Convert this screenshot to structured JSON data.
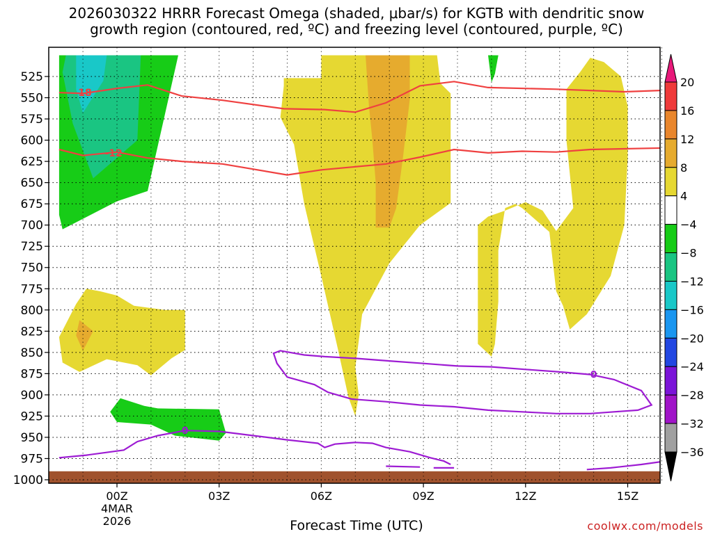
{
  "chart_data": {
    "type": "contour",
    "title_line1": "2026030322 HRRR Forecast Omega (shaded, μbar/s) for KGTB with dendritic snow",
    "title_line2": "growth region (contoured, red, ºC) and freezing level (contoured, purple, ºC)",
    "xlabel": "Forecast Time (UTC)",
    "xlim": [
      -1.7,
      16.3
    ],
    "ylim": [
      1000,
      500
    ],
    "x_ticks": [
      {
        "hours": 0,
        "label": "00Z",
        "sub1": "4MAR",
        "sub2": "2026"
      },
      {
        "hours": 3,
        "label": "03Z"
      },
      {
        "hours": 6,
        "label": "06Z"
      },
      {
        "hours": 9,
        "label": "09Z"
      },
      {
        "hours": 12,
        "label": "12Z"
      },
      {
        "hours": 15,
        "label": "15Z"
      }
    ],
    "y_ticks": [
      525,
      550,
      575,
      600,
      625,
      650,
      675,
      700,
      725,
      750,
      775,
      800,
      825,
      850,
      875,
      900,
      925,
      950,
      975,
      1000
    ],
    "colorbar": {
      "levels": [
        {
          "label": "20",
          "color": "#e8197a"
        },
        {
          "label": "16",
          "color": "#ef3a3a"
        },
        {
          "label": "12",
          "color": "#e9862c"
        },
        {
          "label": "8",
          "color": "#e6ab2e"
        },
        {
          "label": "4",
          "color": "#e6d832"
        },
        {
          "label": "−4",
          "color": "#ffffff"
        },
        {
          "label": "−8",
          "color": "#17cc17"
        },
        {
          "label": "−12",
          "color": "#1ac582"
        },
        {
          "label": "−16",
          "color": "#19c8c8"
        },
        {
          "label": "−20",
          "color": "#1a96f0"
        },
        {
          "label": "−24",
          "color": "#2247e2"
        },
        {
          "label": "−28",
          "color": "#7b14d8"
        },
        {
          "label": "−32",
          "color": "#a014c8"
        },
        {
          "label": "−36",
          "color": "#a0a0a0"
        }
      ]
    },
    "contours": {
      "dgz_upper": {
        "label": "-18",
        "color": "#ef4040",
        "points": [
          [
            -1.7,
            544
          ],
          [
            -1.0,
            545
          ],
          [
            0,
            539
          ],
          [
            0.9,
            535
          ],
          [
            1.9,
            548
          ],
          [
            3.1,
            553
          ],
          [
            4.9,
            563
          ],
          [
            6.1,
            564
          ],
          [
            7.0,
            567
          ],
          [
            7.9,
            556
          ],
          [
            8.9,
            536
          ],
          [
            9.9,
            531
          ],
          [
            10.9,
            538
          ],
          [
            12.9,
            540
          ],
          [
            14.9,
            543
          ],
          [
            16.3,
            541
          ]
        ]
      },
      "dgz_lower": {
        "label": "-12",
        "color": "#ef4040",
        "points": [
          [
            -1.7,
            611
          ],
          [
            -1.0,
            618
          ],
          [
            0,
            614
          ],
          [
            0.9,
            621
          ],
          [
            1.9,
            625
          ],
          [
            3.1,
            628
          ],
          [
            5.0,
            641
          ],
          [
            6.0,
            635
          ],
          [
            7.9,
            628
          ],
          [
            8.9,
            620
          ],
          [
            9.9,
            611
          ],
          [
            10.9,
            615
          ],
          [
            11.9,
            613
          ],
          [
            12.9,
            614
          ],
          [
            13.9,
            611
          ],
          [
            16.3,
            609
          ]
        ]
      },
      "freezing_level": {
        "label": "0",
        "color": "#9d1bd3",
        "labels_at": [
          [
            2.0,
            942
          ],
          [
            14.0,
            876
          ]
        ],
        "lines": [
          [
            [
              -1.7,
              974
            ],
            [
              -0.9,
              971
            ],
            [
              0.2,
              965
            ],
            [
              0.6,
              955
            ],
            [
              1.2,
              948
            ],
            [
              2.0,
              942
            ],
            [
              3.0,
              943
            ],
            [
              4.0,
              948
            ],
            [
              5.0,
              953
            ],
            [
              5.9,
              957
            ],
            [
              6.1,
              962
            ],
            [
              6.4,
              958
            ],
            [
              7.0,
              956
            ],
            [
              7.5,
              957
            ],
            [
              7.9,
              962
            ],
            [
              8.6,
              967
            ],
            [
              9.2,
              974
            ],
            [
              9.6,
              978
            ],
            [
              9.8,
              982
            ]
          ],
          [
            [
              7.9,
              984
            ],
            [
              8.9,
              985
            ]
          ],
          [
            [
              9.3,
              986
            ],
            [
              9.9,
              986
            ]
          ],
          [
            [
              13.8,
              988
            ],
            [
              14.5,
              986
            ],
            [
              15.4,
              982
            ],
            [
              16.3,
              977
            ]
          ]
        ],
        "loops": [
          [
            [
              4.8,
              848
            ],
            [
              5.5,
              853
            ],
            [
              6.1,
              855
            ],
            [
              7.0,
              857
            ],
            [
              8.0,
              860
            ],
            [
              9.0,
              863
            ],
            [
              10.0,
              866
            ],
            [
              11.0,
              867
            ],
            [
              12.0,
              870
            ],
            [
              13.0,
              873
            ],
            [
              13.9,
              876
            ],
            [
              14.6,
              882
            ],
            [
              15.4,
              895
            ],
            [
              15.7,
              912
            ],
            [
              15.3,
              918
            ],
            [
              14.6,
              920
            ],
            [
              13.9,
              922
            ],
            [
              12.9,
              922
            ],
            [
              11.9,
              920
            ],
            [
              10.9,
              918
            ],
            [
              9.9,
              914
            ],
            [
              8.9,
              912
            ],
            [
              7.9,
              908
            ],
            [
              6.9,
              905
            ],
            [
              6.2,
              897
            ],
            [
              5.8,
              888
            ],
            [
              5.0,
              879
            ],
            [
              4.7,
              863
            ],
            [
              4.6,
              851
            ]
          ]
        ]
      }
    },
    "surface_band": {
      "color": "#a0522d",
      "pressure_top": 990,
      "pressure_bottom": 1000
    },
    "regions": [
      {
        "color": "#17cc17",
        "points": [
          [
            -1.7,
            500
          ],
          [
            1.8,
            500
          ],
          [
            0.9,
            660
          ],
          [
            0,
            672
          ],
          [
            -1.6,
            705
          ],
          [
            -1.7,
            688
          ]
        ]
      },
      {
        "color": "#1ac582",
        "points": [
          [
            -1.5,
            500
          ],
          [
            0.7,
            500
          ],
          [
            0.6,
            600
          ],
          [
            -0.7,
            645
          ],
          [
            -1.3,
            580
          ],
          [
            -1.6,
            520
          ]
        ]
      },
      {
        "color": "#19c8c8",
        "points": [
          [
            -1.2,
            500
          ],
          [
            -0.3,
            500
          ],
          [
            -0.4,
            530
          ],
          [
            -1.0,
            568
          ],
          [
            -1.2,
            540
          ]
        ]
      },
      {
        "color": "#17cc17",
        "points": [
          [
            10.9,
            500
          ],
          [
            11.2,
            500
          ],
          [
            11.1,
            522
          ],
          [
            11.0,
            532
          ]
        ]
      },
      {
        "color": "#17cc17",
        "points": [
          [
            -0.2,
            920
          ],
          [
            0.1,
            904
          ],
          [
            0.8,
            913
          ],
          [
            1.2,
            916
          ],
          [
            3.0,
            917
          ],
          [
            3.2,
            945
          ],
          [
            3.0,
            954
          ],
          [
            1.7,
            948
          ],
          [
            1.0,
            935
          ],
          [
            0,
            932
          ]
        ]
      },
      {
        "color": "#e6d832",
        "points": [
          [
            6.0,
            500
          ],
          [
            7.4,
            500
          ],
          [
            9.4,
            500
          ],
          [
            9.5,
            533
          ],
          [
            9.8,
            545
          ],
          [
            9.8,
            674
          ],
          [
            8.9,
            700
          ],
          [
            8.0,
            745
          ],
          [
            7.2,
            805
          ],
          [
            7.0,
            868
          ],
          [
            7.1,
            900
          ],
          [
            7.0,
            925
          ],
          [
            6.8,
            903
          ],
          [
            6.5,
            848
          ],
          [
            6.0,
            760
          ],
          [
            5.5,
            675
          ],
          [
            5.2,
            605
          ],
          [
            4.8,
            573
          ],
          [
            4.9,
            536
          ],
          [
            4.9,
            527
          ],
          [
            6.0,
            527
          ]
        ]
      },
      {
        "color": "#e6ab2e",
        "points": [
          [
            7.3,
            500
          ],
          [
            8.6,
            500
          ],
          [
            8.6,
            552
          ],
          [
            8.4,
            620
          ],
          [
            8.2,
            680
          ],
          [
            8.0,
            703
          ],
          [
            7.6,
            703
          ],
          [
            7.6,
            650
          ],
          [
            7.5,
            600
          ],
          [
            7.4,
            560
          ]
        ]
      },
      {
        "color": "#e6d832",
        "points": [
          [
            13.4,
            680
          ],
          [
            13.2,
            600
          ],
          [
            13.2,
            540
          ],
          [
            13.6,
            520
          ],
          [
            13.9,
            503
          ],
          [
            14.3,
            508
          ],
          [
            14.8,
            525
          ],
          [
            15.0,
            560
          ],
          [
            15.0,
            620
          ],
          [
            14.9,
            700
          ],
          [
            14.5,
            760
          ],
          [
            13.8,
            805
          ],
          [
            13.3,
            823
          ],
          [
            13.1,
            795
          ],
          [
            12.9,
            778
          ],
          [
            12.7,
            708
          ],
          [
            11.9,
            680
          ],
          [
            11.7,
            675
          ],
          [
            11.4,
            680
          ],
          [
            11.2,
            730
          ],
          [
            11.2,
            790
          ],
          [
            11.1,
            840
          ],
          [
            11.0,
            855
          ],
          [
            10.6,
            840
          ],
          [
            10.6,
            700
          ],
          [
            10.9,
            690
          ],
          [
            11.4,
            683
          ],
          [
            12.0,
            673
          ],
          [
            12.5,
            683
          ],
          [
            12.9,
            707
          ]
        ]
      },
      {
        "color": "#e6d832",
        "points": [
          [
            -1.7,
            832
          ],
          [
            -1.2,
            793
          ],
          [
            -0.9,
            775
          ],
          [
            -0.5,
            778
          ],
          [
            0,
            783
          ],
          [
            0.5,
            795
          ],
          [
            1.4,
            800
          ],
          [
            2.0,
            800
          ],
          [
            2.0,
            847
          ],
          [
            1.6,
            857
          ],
          [
            1.0,
            877
          ],
          [
            0.6,
            865
          ],
          [
            -0.3,
            858
          ],
          [
            -1.1,
            873
          ],
          [
            -1.6,
            862
          ]
        ]
      },
      {
        "color": "#e6ab2e",
        "points": [
          [
            -1.1,
            812
          ],
          [
            -0.7,
            825
          ],
          [
            -1.0,
            848
          ],
          [
            -1.2,
            830
          ]
        ]
      }
    ]
  },
  "footer": {
    "xlabel": "Forecast Time (UTC)",
    "credit": "coolwx.com/models"
  }
}
